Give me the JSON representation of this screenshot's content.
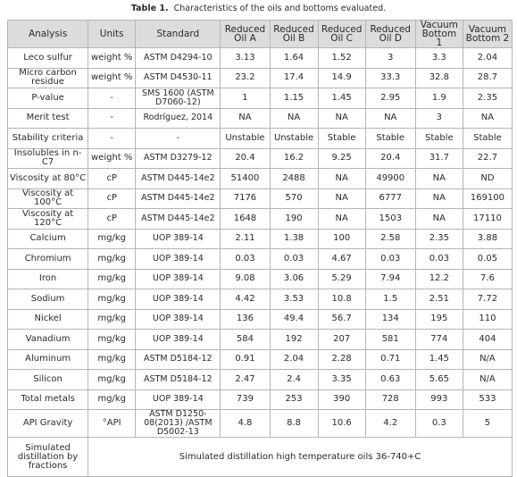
{
  "caption": {
    "label": "Table 1.",
    "text": "Characteristics of the oils and bottoms evaluated."
  },
  "table": {
    "header": [
      "Analysis",
      "Units",
      "Standard",
      "Reduced Oil A",
      "Reduced Oil B",
      "Reduced Oil C",
      "Reduced Oil D",
      "Vacuum Bottom 1",
      "Vacuum Bottom 2"
    ],
    "rows": [
      [
        "Leco sulfur",
        "weight %",
        "ASTM D4294-10",
        "3.13",
        "1.64",
        "1.52",
        "3",
        "3.3",
        "2.04"
      ],
      [
        "Micro carbon residue",
        "weight %",
        "ASTM D4530-11",
        "23.2",
        "17.4",
        "14.9",
        "33.3",
        "32.8",
        "28.7"
      ],
      [
        "P-value",
        "-",
        "SMS 1600 (ASTM D7060-12)",
        "1",
        "1.15",
        "1.45",
        "2.95",
        "1.9",
        "2.35"
      ],
      [
        "Merit test",
        "-",
        "Rodríguez, 2014",
        "NA",
        "NA",
        "NA",
        "NA",
        "3",
        "NA"
      ],
      [
        "Stability criteria",
        "-",
        "-",
        "Unstable",
        "Unstable",
        "Stable",
        "Stable",
        "Stable",
        "Stable"
      ],
      [
        "Insolubles in n-C7",
        "weight %",
        "ASTM D3279-12",
        "20.4",
        "16.2",
        "9.25",
        "20.4",
        "31.7",
        "22.7"
      ],
      [
        "Viscosity at 80°C",
        "cP",
        "ASTM D445-14e2",
        "51400",
        "2488",
        "NA",
        "49900",
        "NA",
        "ND"
      ],
      [
        "Viscosity at 100°C",
        "cP",
        "ASTM D445-14e2",
        "7176",
        "570",
        "NA",
        "6777",
        "NA",
        "169100"
      ],
      [
        "Viscosity at 120°C",
        "cP",
        "ASTM D445-14e2",
        "1648",
        "190",
        "NA",
        "1503",
        "NA",
        "17110"
      ],
      [
        "Calcium",
        "mg/kg",
        "UOP 389-14",
        "2.11",
        "1.38",
        "100",
        "2.58",
        "2.35",
        "3.88"
      ],
      [
        "Chromium",
        "mg/kg",
        "UOP 389-14",
        "0.03",
        "0.03",
        "4.67",
        "0.03",
        "0.03",
        "0.05"
      ],
      [
        "Iron",
        "mg/kg",
        "UOP 389-14",
        "9.08",
        "3.06",
        "5.29",
        "7.94",
        "12.2",
        "7.6"
      ],
      [
        "Sodium",
        "mg/kg",
        "UOP 389-14",
        "4.42",
        "3.53",
        "10.8",
        "1.5",
        "2.51",
        "7.72"
      ],
      [
        "Nickel",
        "mg/kg",
        "UOP 389-14",
        "136",
        "49.4",
        "56.7",
        "134",
        "195",
        "110"
      ],
      [
        "Vanadium",
        "mg/kg",
        "UOP 389-14",
        "584",
        "192",
        "207",
        "581",
        "774",
        "404"
      ],
      [
        "Aluminum",
        "mg/kg",
        "ASTM D5184-12",
        "0.91",
        "2.04",
        "2.28",
        "0.71",
        "1.45",
        "N/A"
      ],
      [
        "Silicon",
        "mg/kg",
        "ASTM D5184-12",
        "2.47",
        "2.4",
        "3.35",
        "0.63",
        "5.65",
        "N/A"
      ],
      [
        "Total metals",
        "mg/kg",
        "UOP 389-14",
        "739",
        "253",
        "390",
        "728",
        "993",
        "533"
      ],
      [
        "API Gravity",
        "°API",
        "ASTM D1250-08(2013) /ASTM D5002-13",
        "4.8",
        "8.8",
        "10.6",
        "4.2",
        "0.3",
        "5"
      ]
    ],
    "footer_row": {
      "label": "Simulated distillation by fractions",
      "text": "Simulated distillation high temperature oils 36-740+C"
    }
  }
}
